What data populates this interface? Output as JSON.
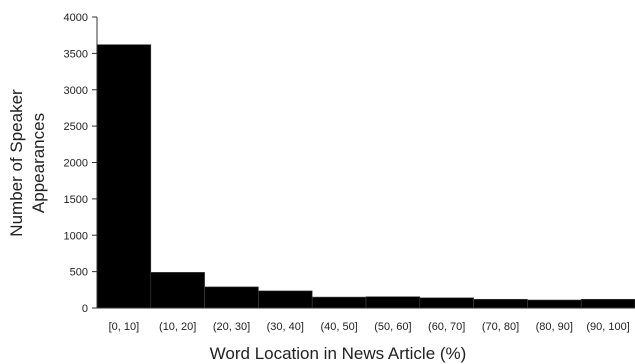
{
  "chart_data": {
    "type": "bar",
    "title": "",
    "xlabel": "Word Location in News Article (%)",
    "ylabel_lines": [
      "Number of Speaker",
      "Appearances"
    ],
    "categories": [
      "[0, 10]",
      "(10, 20]",
      "(20, 30]",
      "(30, 40]",
      "(40, 50]",
      "(50, 60]",
      "(60, 70]",
      "(70, 80]",
      "(80, 90]",
      "(90, 100]"
    ],
    "values": [
      3620,
      490,
      290,
      235,
      150,
      155,
      140,
      120,
      110,
      120
    ],
    "ylim": [
      0,
      4000
    ],
    "yticks": [
      0,
      500,
      1000,
      1500,
      2000,
      2500,
      3000,
      3500,
      4000
    ],
    "grid": false,
    "bar_color": "#000000"
  }
}
